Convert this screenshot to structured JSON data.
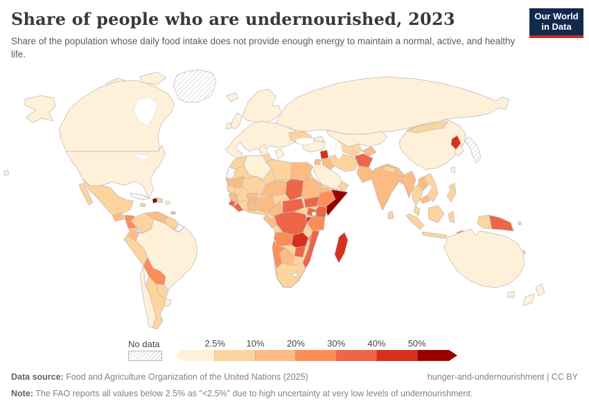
{
  "header": {
    "title": "Share of people who are undernourished, 2023",
    "subtitle": "Share of the population whose daily food intake does not provide enough energy to maintain a normal, active, and healthy life."
  },
  "logo": {
    "line1": "Our World",
    "line2": "in Data"
  },
  "colors": {
    "logo_navy": "#12294E",
    "logo_red": "#C22D20",
    "border_gray": "#b9b9b9"
  },
  "legend": {
    "no_data_label": "No data",
    "ticks": [
      "2.5%",
      "10%",
      "20%",
      "30%",
      "40%",
      "50%"
    ],
    "bin_order": [
      "b0",
      "b1",
      "b2",
      "b3",
      "b4",
      "b5",
      "b6"
    ]
  },
  "map": {
    "palette": {
      "b0": "#FEF0D9",
      "b1": "#FDD49E",
      "b2": "#FDBB84",
      "b3": "#FC8D59",
      "b4": "#EF6548",
      "b5": "#D7301F",
      "b6": "#990000"
    },
    "regions": {
      "greenland": "nodata",
      "canada": "b0",
      "canada-arctic1": "b0",
      "canada-arctic2": "b0",
      "alaska": "b0",
      "usa": "b0",
      "hawaii": "b0",
      "mexico": "b1",
      "baja": "b1",
      "guatemala": "b2",
      "honduras": "b3",
      "nicaragua": "b3",
      "costa-rica": "b1",
      "panama": "b2",
      "cuba": "nodata",
      "jamaica": "b1",
      "haiti": "b6",
      "dominican-republic": "b1",
      "puerto-rico": "b0",
      "trinidad": "b2",
      "colombia": "b1",
      "venezuela": "b2",
      "guyana-suriname": "b1",
      "french-guiana": "nodata",
      "ecuador": "b2",
      "peru": "b1",
      "brazil": "b0",
      "bolivia": "b3",
      "paraguay": "b1",
      "uruguay": "b0",
      "argentina": "b1",
      "chile": "b0",
      "iceland": "b0",
      "scandinavia": "b0",
      "uk": "b0",
      "ireland": "b0",
      "europe": "b0",
      "italy": "b0",
      "greece": "b0",
      "ukraine": "b1",
      "russia": "b0",
      "kazakhstan": "b0",
      "uzbekistan-turkmenistan": "b1",
      "tajikistan-kyrgyzstan": "b2",
      "caucasus": "b0",
      "turkey": "b0",
      "syria": "b5",
      "iraq": "b2",
      "jordan": "b2",
      "saudi-arabia": "b0",
      "yemen": "nodata",
      "oman": "b1",
      "iran": "b1",
      "afghanistan": "b4",
      "pakistan": "b2",
      "india": "b2",
      "nepal": "b1",
      "bangladesh": "b2",
      "sri-lanka": "b1",
      "china": "b0",
      "mongolia": "b1",
      "north-korea": "b5",
      "south-korea": "b0",
      "japan": "nodata",
      "taiwan": "b0",
      "myanmar": "b2",
      "laos": "b2",
      "vietnam": "b1",
      "thailand": "b1",
      "cambodia": "b2",
      "malaysia": "b1",
      "philippines": "b1",
      "indonesia": "b1",
      "timor-leste": "b3",
      "papua-new-guinea": "b4",
      "solomon-islands": "b1",
      "new-caledonia": "b1",
      "australia": "b0",
      "tasmania": "b0",
      "new-zealand": "b0",
      "africa-base": "b1",
      "morocco": "b1",
      "western-sahara": "nodata",
      "algeria": "b0",
      "tunisia": "b1",
      "libya": "b1",
      "egypt": "b2",
      "mauritania": "b2",
      "mali": "b1",
      "niger": "b2",
      "chad": "b4",
      "sudan": "b2",
      "eritrea-djibouti": "b2",
      "senegal": "b1",
      "guinea": "b2",
      "sierra-leone": "b4",
      "liberia": "b4",
      "cote-divoire": "b1",
      "ghana-togo-benin": "b2",
      "burkina-faso": "b2",
      "nigeria": "b2",
      "cameroon": "b2",
      "central-african-republic": "b4",
      "south-sudan": "b4",
      "ethiopia": "b3",
      "somalia": "b6",
      "kenya": "b4",
      "uganda": "b4",
      "dr-congo": "b4",
      "congo-gabon": "b2",
      "rwanda-burundi": "b5",
      "tanzania": "b3",
      "angola": "b3",
      "zambia": "b5",
      "malawi": "b3",
      "mozambique": "b4",
      "zimbabwe": "b4",
      "botswana": "b2",
      "namibia": "b3",
      "south-africa": "b1",
      "lesotho": "nodata",
      "madagascar": "b5"
    }
  },
  "footer": {
    "datasource_label": "Data source:",
    "datasource": " Food and Agriculture Organization of the United Nations (2025)",
    "permalink": "hunger-and-undernourishment | CC BY",
    "note_label": "Note:",
    "note": " The FAO reports all values below 2.5% as \"<2.5%\" due to high uncertainty at very low levels of undernourishment."
  }
}
